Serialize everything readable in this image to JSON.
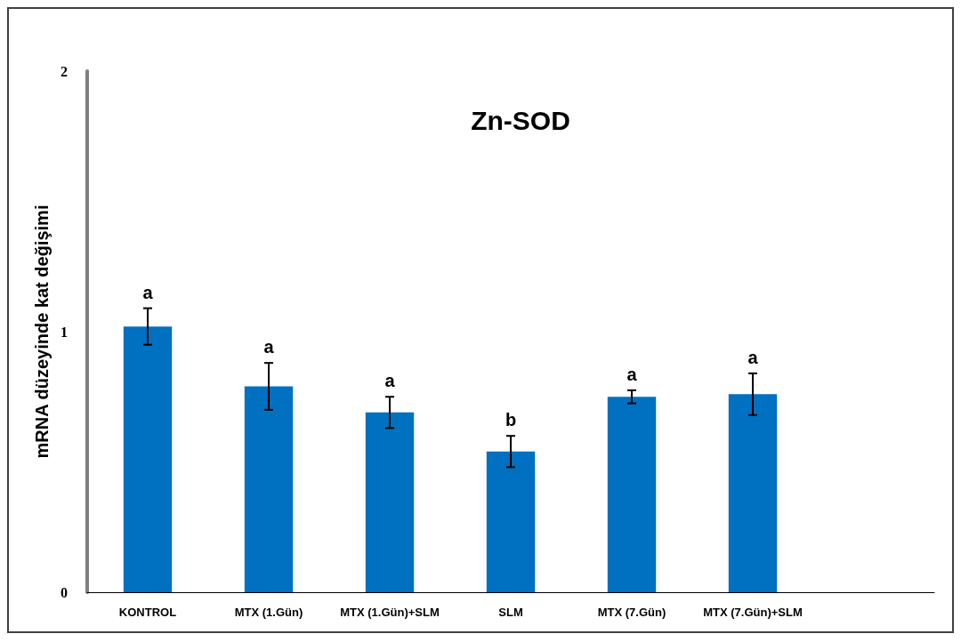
{
  "chart_data": {
    "type": "bar",
    "title": "Zn-SOD",
    "ylabel": "mRNA düzeyinde kat değişimi",
    "categories": [
      "KONTROL",
      "MTX (1.Gün)",
      "MTX (1.Gün)+SLM",
      "SLM",
      "MTX (7.Gün)",
      "MTX (7.Gün)+SLM",
      null
    ],
    "values": [
      1.02,
      0.79,
      0.69,
      0.54,
      0.75,
      0.76,
      null
    ],
    "errors": [
      0.07,
      0.09,
      0.06,
      0.06,
      0.025,
      0.08,
      null
    ],
    "color": "#0070c0",
    "ylim": [
      0,
      2
    ],
    "yticks": [
      0,
      1,
      2
    ],
    "grid": false,
    "annotations": [
      "a",
      "a",
      "a",
      "b",
      "a",
      "a"
    ]
  }
}
